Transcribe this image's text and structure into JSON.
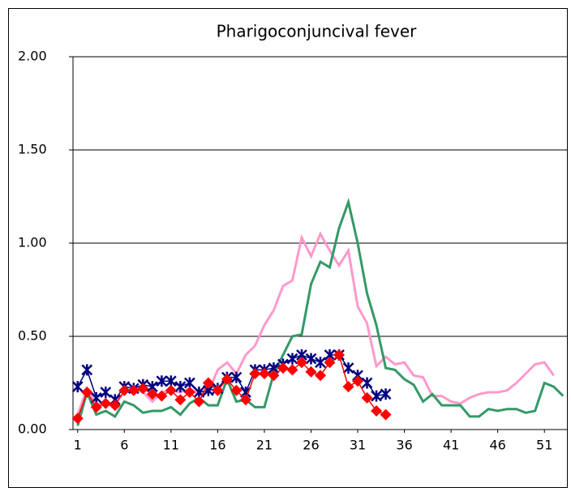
{
  "chart_data": {
    "type": "line",
    "title": "Pharigoconjuncival fever",
    "x": [
      1,
      2,
      3,
      4,
      5,
      6,
      7,
      8,
      9,
      10,
      11,
      12,
      13,
      14,
      15,
      16,
      17,
      18,
      19,
      20,
      21,
      22,
      23,
      24,
      25,
      26,
      27,
      28,
      29,
      30,
      31,
      32,
      33,
      34,
      35,
      36,
      37,
      38,
      39,
      40,
      41,
      42,
      43,
      44,
      45,
      46,
      47,
      48,
      49,
      50,
      51,
      52,
      53
    ],
    "xlim": [
      0.5,
      53.5
    ],
    "xticks": [
      1,
      6,
      11,
      16,
      21,
      26,
      31,
      36,
      41,
      46,
      51
    ],
    "ylim": [
      0,
      2
    ],
    "yticks": [
      {
        "value": 0,
        "label": "0.00"
      },
      {
        "value": 0.5,
        "label": "0.50"
      },
      {
        "value": 1,
        "label": "1.00"
      },
      {
        "value": 1.5,
        "label": "1.50"
      },
      {
        "value": 2,
        "label": "2.00"
      }
    ],
    "grid": true,
    "series": [
      {
        "color": "#ff99cc",
        "marker": "none",
        "values": [
          0.08,
          0.22,
          0.14,
          0.13,
          0.14,
          0.2,
          0.22,
          0.2,
          0.15,
          0.2,
          0.21,
          0.2,
          0.22,
          0.19,
          0.2,
          0.32,
          0.36,
          0.3,
          0.4,
          0.45,
          0.56,
          0.64,
          0.77,
          0.8,
          1.03,
          0.93,
          1.05,
          0.96,
          0.88,
          0.96,
          0.66,
          0.57,
          0.34,
          0.39,
          0.35,
          0.36,
          0.29,
          0.28,
          0.18,
          0.18,
          0.15,
          0.14,
          0.17,
          0.19,
          0.2,
          0.2,
          0.21,
          0.25,
          0.3,
          0.35,
          0.36,
          0.29,
          null
        ]
      },
      {
        "color": "#339966",
        "marker": "none",
        "values": [
          0.02,
          0.2,
          0.08,
          0.1,
          0.07,
          0.15,
          0.13,
          0.09,
          0.1,
          0.1,
          0.12,
          0.08,
          0.14,
          0.17,
          0.13,
          0.13,
          0.27,
          0.15,
          0.16,
          0.12,
          0.12,
          0.3,
          0.4,
          0.5,
          0.51,
          0.78,
          0.9,
          0.87,
          1.08,
          1.22,
          1.0,
          0.73,
          0.56,
          0.33,
          0.32,
          0.27,
          0.24,
          0.15,
          0.19,
          0.13,
          0.13,
          0.13,
          0.07,
          0.07,
          0.11,
          0.1,
          0.11,
          0.11,
          0.09,
          0.1,
          0.25,
          0.23,
          0.18
        ]
      },
      {
        "color": "#000080",
        "marker": "star",
        "values": [
          0.23,
          0.32,
          0.17,
          0.2,
          0.16,
          0.23,
          0.22,
          0.24,
          0.23,
          0.26,
          0.26,
          0.23,
          0.25,
          0.2,
          0.21,
          0.22,
          0.28,
          0.28,
          0.2,
          0.32,
          0.32,
          0.33,
          0.35,
          0.38,
          0.4,
          0.38,
          0.36,
          0.4,
          0.4,
          0.33,
          0.29,
          0.25,
          0.18,
          0.19,
          null,
          null,
          null,
          null,
          null,
          null,
          null,
          null,
          null,
          null,
          null,
          null,
          null,
          null,
          null,
          null,
          null,
          null,
          null
        ]
      },
      {
        "color": "#ff0000",
        "marker": "diamond",
        "values": [
          0.06,
          0.2,
          0.12,
          0.14,
          0.13,
          0.21,
          0.21,
          0.22,
          0.19,
          0.18,
          0.21,
          0.16,
          0.2,
          0.15,
          0.25,
          0.21,
          0.27,
          0.21,
          0.16,
          0.3,
          0.3,
          0.29,
          0.33,
          0.32,
          0.36,
          0.31,
          0.29,
          0.36,
          0.4,
          0.23,
          0.26,
          0.17,
          0.1,
          0.08,
          null,
          null,
          null,
          null,
          null,
          null,
          null,
          null,
          null,
          null,
          null,
          null,
          null,
          null,
          null,
          null,
          null,
          null,
          null
        ]
      }
    ]
  }
}
